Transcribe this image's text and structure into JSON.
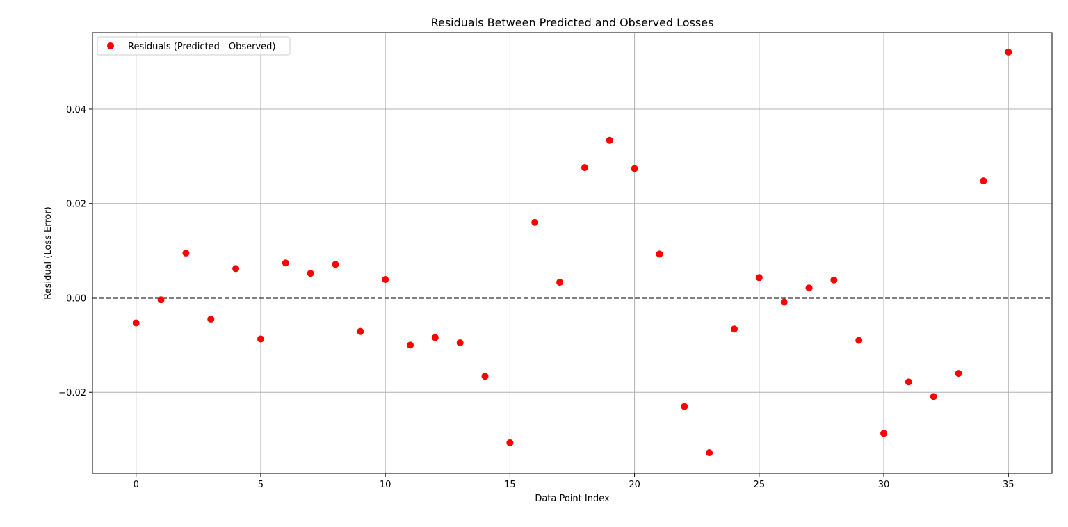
{
  "chart_data": {
    "type": "scatter",
    "title": "Residuals Between Predicted and Observed Losses",
    "xlabel": "Data Point Index",
    "ylabel": "Residual (Loss Error)",
    "xlim": [
      -1.75,
      36.75
    ],
    "ylim": [
      -0.0372,
      0.0562
    ],
    "xticks": [
      0,
      5,
      10,
      15,
      20,
      25,
      30,
      35
    ],
    "yticks": [
      -0.02,
      0,
      0.02,
      0.04
    ],
    "xtick_labels": [
      "0",
      "5",
      "10",
      "15",
      "20",
      "25",
      "30",
      "35"
    ],
    "ytick_labels": [
      "−0.02",
      "0.00",
      "0.02",
      "0.04"
    ],
    "grid": true,
    "legend_position": "top-left",
    "reference_line": {
      "y": 0,
      "style": "dashed",
      "color": "#000000"
    },
    "series": [
      {
        "name": "Residuals (Predicted - Observed)",
        "color": "#ff0000",
        "marker": "circle",
        "x": [
          0,
          1,
          2,
          3,
          4,
          5,
          6,
          7,
          8,
          9,
          10,
          11,
          12,
          13,
          14,
          15,
          16,
          17,
          18,
          19,
          20,
          21,
          22,
          23,
          24,
          25,
          26,
          27,
          28,
          29,
          30,
          31,
          32,
          33,
          34,
          35
        ],
        "y": [
          -0.0053,
          -0.0004,
          0.0095,
          -0.0045,
          0.0062,
          -0.0087,
          0.0074,
          0.0052,
          0.0071,
          -0.0071,
          0.0039,
          -0.01,
          -0.0084,
          -0.0095,
          -0.0166,
          -0.0307,
          0.016,
          0.0033,
          0.0276,
          0.0334,
          0.0274,
          0.0093,
          -0.023,
          -0.0328,
          -0.0066,
          0.0043,
          -0.0009,
          0.0021,
          0.0038,
          -0.009,
          -0.0287,
          -0.0178,
          -0.0209,
          -0.016,
          0.0248,
          0.0521
        ]
      }
    ]
  }
}
